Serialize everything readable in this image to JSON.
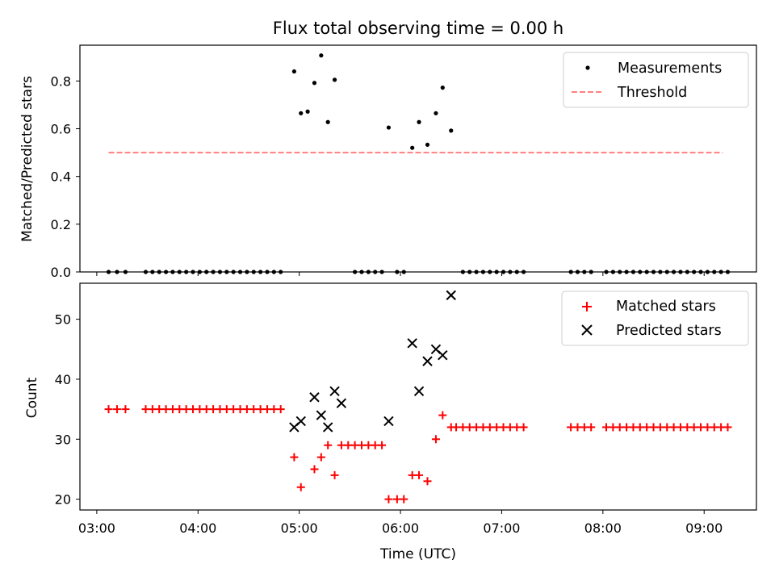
{
  "chart_data": [
    {
      "type": "scatter",
      "title": "Flux total observing time = 0.00 h",
      "xlabel": "",
      "ylabel": "Matched/Predicted stars",
      "xlim": [
        "02:50",
        "09:31"
      ],
      "ylim": [
        0,
        0.95
      ],
      "x_ticks": [
        "03:00",
        "04:00",
        "05:00",
        "06:00",
        "07:00",
        "08:00",
        "09:00"
      ],
      "y_ticks": [
        "0.0",
        "0.2",
        "0.4",
        "0.6",
        "0.8"
      ],
      "legend": {
        "position": "top-right",
        "entries": [
          "Measurements",
          "Threshold"
        ]
      },
      "series": [
        {
          "name": "Measurements",
          "color": "#000000",
          "marker": "dot",
          "points": [
            [
              "03:07",
              0
            ],
            [
              "03:12",
              0
            ],
            [
              "03:17",
              0
            ],
            [
              "03:29",
              0
            ],
            [
              "03:33",
              0
            ],
            [
              "03:37",
              0
            ],
            [
              "03:41",
              0
            ],
            [
              "03:45",
              0
            ],
            [
              "03:49",
              0
            ],
            [
              "03:53",
              0
            ],
            [
              "03:57",
              0
            ],
            [
              "04:01",
              0
            ],
            [
              "04:05",
              0
            ],
            [
              "04:09",
              0
            ],
            [
              "04:13",
              0
            ],
            [
              "04:17",
              0
            ],
            [
              "04:21",
              0
            ],
            [
              "04:25",
              0
            ],
            [
              "04:29",
              0
            ],
            [
              "04:33",
              0
            ],
            [
              "04:37",
              0
            ],
            [
              "04:41",
              0
            ],
            [
              "04:45",
              0
            ],
            [
              "04:49",
              0
            ],
            [
              "04:57",
              0.84
            ],
            [
              "05:01",
              0.665
            ],
            [
              "05:05",
              0.672
            ],
            [
              "05:09",
              0.792
            ],
            [
              "05:13",
              0.907
            ],
            [
              "05:17",
              0.628
            ],
            [
              "05:21",
              0.805
            ],
            [
              "05:33",
              0
            ],
            [
              "05:37",
              0
            ],
            [
              "05:41",
              0
            ],
            [
              "05:45",
              0
            ],
            [
              "05:49",
              0
            ],
            [
              "05:58",
              0
            ],
            [
              "06:02",
              0
            ],
            [
              "05:53",
              0.605
            ],
            [
              "06:07",
              0.52
            ],
            [
              "06:11",
              0.628
            ],
            [
              "06:16",
              0.533
            ],
            [
              "06:21",
              0.665
            ],
            [
              "06:25",
              0.772
            ],
            [
              "06:30",
              0.592
            ],
            [
              "06:37",
              0
            ],
            [
              "06:41",
              0
            ],
            [
              "06:45",
              0
            ],
            [
              "06:49",
              0
            ],
            [
              "06:53",
              0
            ],
            [
              "06:57",
              0
            ],
            [
              "07:01",
              0
            ],
            [
              "07:05",
              0
            ],
            [
              "07:09",
              0
            ],
            [
              "07:13",
              0
            ],
            [
              "07:41",
              0
            ],
            [
              "07:45",
              0
            ],
            [
              "07:49",
              0
            ],
            [
              "07:53",
              0
            ],
            [
              "08:02",
              0
            ],
            [
              "08:06",
              0
            ],
            [
              "08:10",
              0
            ],
            [
              "08:14",
              0
            ],
            [
              "08:18",
              0
            ],
            [
              "08:22",
              0
            ],
            [
              "08:26",
              0
            ],
            [
              "08:30",
              0
            ],
            [
              "08:34",
              0
            ],
            [
              "08:38",
              0
            ],
            [
              "08:42",
              0
            ],
            [
              "08:46",
              0
            ],
            [
              "08:50",
              0
            ],
            [
              "08:54",
              0
            ],
            [
              "08:58",
              0
            ],
            [
              "09:02",
              0
            ],
            [
              "09:06",
              0
            ],
            [
              "09:10",
              0
            ],
            [
              "09:14",
              0
            ]
          ]
        },
        {
          "name": "Threshold",
          "color": "#ff7f7f",
          "style": "dashed",
          "points": [
            [
              "03:07",
              0.5
            ],
            [
              "09:11",
              0.5
            ]
          ]
        }
      ]
    },
    {
      "type": "scatter",
      "title": "",
      "xlabel": "Time (UTC)",
      "ylabel": "Count",
      "xlim": [
        "02:50",
        "09:31"
      ],
      "ylim": [
        18.2,
        56
      ],
      "x_ticks": [
        "03:00",
        "04:00",
        "05:00",
        "06:00",
        "07:00",
        "08:00",
        "09:00"
      ],
      "y_ticks": [
        "20",
        "30",
        "40",
        "50"
      ],
      "legend": {
        "position": "top-right",
        "entries": [
          "Matched stars",
          "Predicted stars"
        ]
      },
      "series": [
        {
          "name": "Matched stars",
          "color": "#ff0000",
          "marker": "plus",
          "points": [
            [
              "03:07",
              35
            ],
            [
              "03:12",
              35
            ],
            [
              "03:17",
              35
            ],
            [
              "03:29",
              35
            ],
            [
              "03:33",
              35
            ],
            [
              "03:37",
              35
            ],
            [
              "03:41",
              35
            ],
            [
              "03:45",
              35
            ],
            [
              "03:49",
              35
            ],
            [
              "03:53",
              35
            ],
            [
              "03:57",
              35
            ],
            [
              "04:01",
              35
            ],
            [
              "04:05",
              35
            ],
            [
              "04:09",
              35
            ],
            [
              "04:13",
              35
            ],
            [
              "04:17",
              35
            ],
            [
              "04:21",
              35
            ],
            [
              "04:25",
              35
            ],
            [
              "04:29",
              35
            ],
            [
              "04:33",
              35
            ],
            [
              "04:37",
              35
            ],
            [
              "04:41",
              35
            ],
            [
              "04:45",
              35
            ],
            [
              "04:49",
              35
            ],
            [
              "04:57",
              27
            ],
            [
              "05:01",
              22
            ],
            [
              "05:09",
              25
            ],
            [
              "05:13",
              27
            ],
            [
              "05:17",
              29
            ],
            [
              "05:21",
              24
            ],
            [
              "05:25",
              29
            ],
            [
              "05:29",
              29
            ],
            [
              "05:33",
              29
            ],
            [
              "05:37",
              29
            ],
            [
              "05:41",
              29
            ],
            [
              "05:45",
              29
            ],
            [
              "05:49",
              29
            ],
            [
              "05:53",
              20
            ],
            [
              "05:58",
              20
            ],
            [
              "06:02",
              20
            ],
            [
              "06:07",
              24
            ],
            [
              "06:11",
              24
            ],
            [
              "06:16",
              23
            ],
            [
              "06:21",
              30
            ],
            [
              "06:25",
              34
            ],
            [
              "06:30",
              32
            ],
            [
              "06:33",
              32
            ],
            [
              "06:37",
              32
            ],
            [
              "06:41",
              32
            ],
            [
              "06:45",
              32
            ],
            [
              "06:49",
              32
            ],
            [
              "06:53",
              32
            ],
            [
              "06:57",
              32
            ],
            [
              "07:01",
              32
            ],
            [
              "07:05",
              32
            ],
            [
              "07:09",
              32
            ],
            [
              "07:13",
              32
            ],
            [
              "07:41",
              32
            ],
            [
              "07:45",
              32
            ],
            [
              "07:49",
              32
            ],
            [
              "07:53",
              32
            ],
            [
              "08:02",
              32
            ],
            [
              "08:06",
              32
            ],
            [
              "08:10",
              32
            ],
            [
              "08:14",
              32
            ],
            [
              "08:18",
              32
            ],
            [
              "08:22",
              32
            ],
            [
              "08:26",
              32
            ],
            [
              "08:30",
              32
            ],
            [
              "08:34",
              32
            ],
            [
              "08:38",
              32
            ],
            [
              "08:42",
              32
            ],
            [
              "08:46",
              32
            ],
            [
              "08:50",
              32
            ],
            [
              "08:54",
              32
            ],
            [
              "08:58",
              32
            ],
            [
              "09:02",
              32
            ],
            [
              "09:06",
              32
            ],
            [
              "09:10",
              32
            ],
            [
              "09:14",
              32
            ]
          ]
        },
        {
          "name": "Predicted stars",
          "color": "#000000",
          "marker": "x",
          "points": [
            [
              "04:57",
              32
            ],
            [
              "05:01",
              33
            ],
            [
              "05:09",
              37
            ],
            [
              "05:13",
              34
            ],
            [
              "05:17",
              32
            ],
            [
              "05:21",
              38
            ],
            [
              "05:25",
              36
            ],
            [
              "05:53",
              33
            ],
            [
              "06:07",
              46
            ],
            [
              "06:11",
              38
            ],
            [
              "06:16",
              43
            ],
            [
              "06:21",
              45
            ],
            [
              "06:25",
              44
            ],
            [
              "06:30",
              54
            ]
          ]
        }
      ]
    }
  ]
}
